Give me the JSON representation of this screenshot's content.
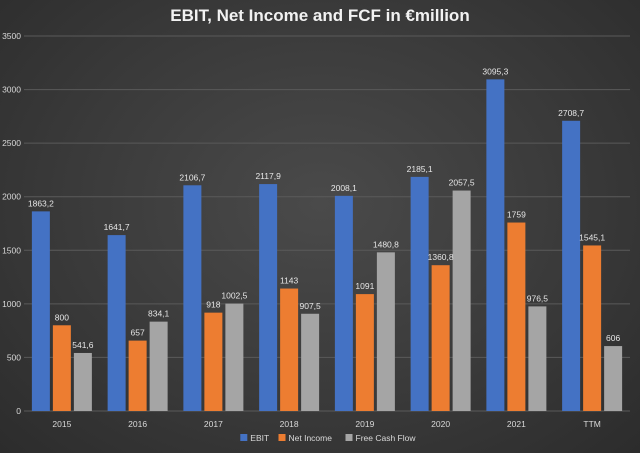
{
  "chart_data": {
    "type": "bar",
    "title": "EBIT, Net Income and FCF in €million",
    "categories": [
      "2015",
      "2016",
      "2017",
      "2018",
      "2019",
      "2020",
      "2021",
      "TTM"
    ],
    "series": [
      {
        "name": "EBIT",
        "color": "#4472c4",
        "values": [
          1863.2,
          1641.7,
          2106.7,
          2117.9,
          2008.1,
          2185.1,
          3095.3,
          2708.7
        ],
        "labels": [
          "1863,2",
          "1641,7",
          "2106,7",
          "2117,9",
          "2008,1",
          "2185,1",
          "3095,3",
          "2708,7"
        ]
      },
      {
        "name": "Net Income",
        "color": "#ed7d31",
        "values": [
          800,
          657,
          918,
          1143,
          1091,
          1360.8,
          1759,
          1545.1
        ],
        "labels": [
          "800",
          "657",
          "918",
          "1143",
          "1091",
          "1360,8",
          "1759",
          "1545,1"
        ]
      },
      {
        "name": "Free Cash Flow",
        "color": "#a5a5a5",
        "values": [
          541.6,
          834.1,
          1002.5,
          907.5,
          1480.8,
          2057.5,
          976.5,
          606
        ],
        "labels": [
          "541,6",
          "834,1",
          "1002,5",
          "907,5",
          "1480,8",
          "2057,5",
          "976,5",
          "606"
        ]
      }
    ],
    "ylim": [
      0,
      3500
    ],
    "yticks": [
      "0",
      "500",
      "1000",
      "1500",
      "2000",
      "2500",
      "3000",
      "3500"
    ],
    "grid": true,
    "legend": "bottom-center"
  }
}
